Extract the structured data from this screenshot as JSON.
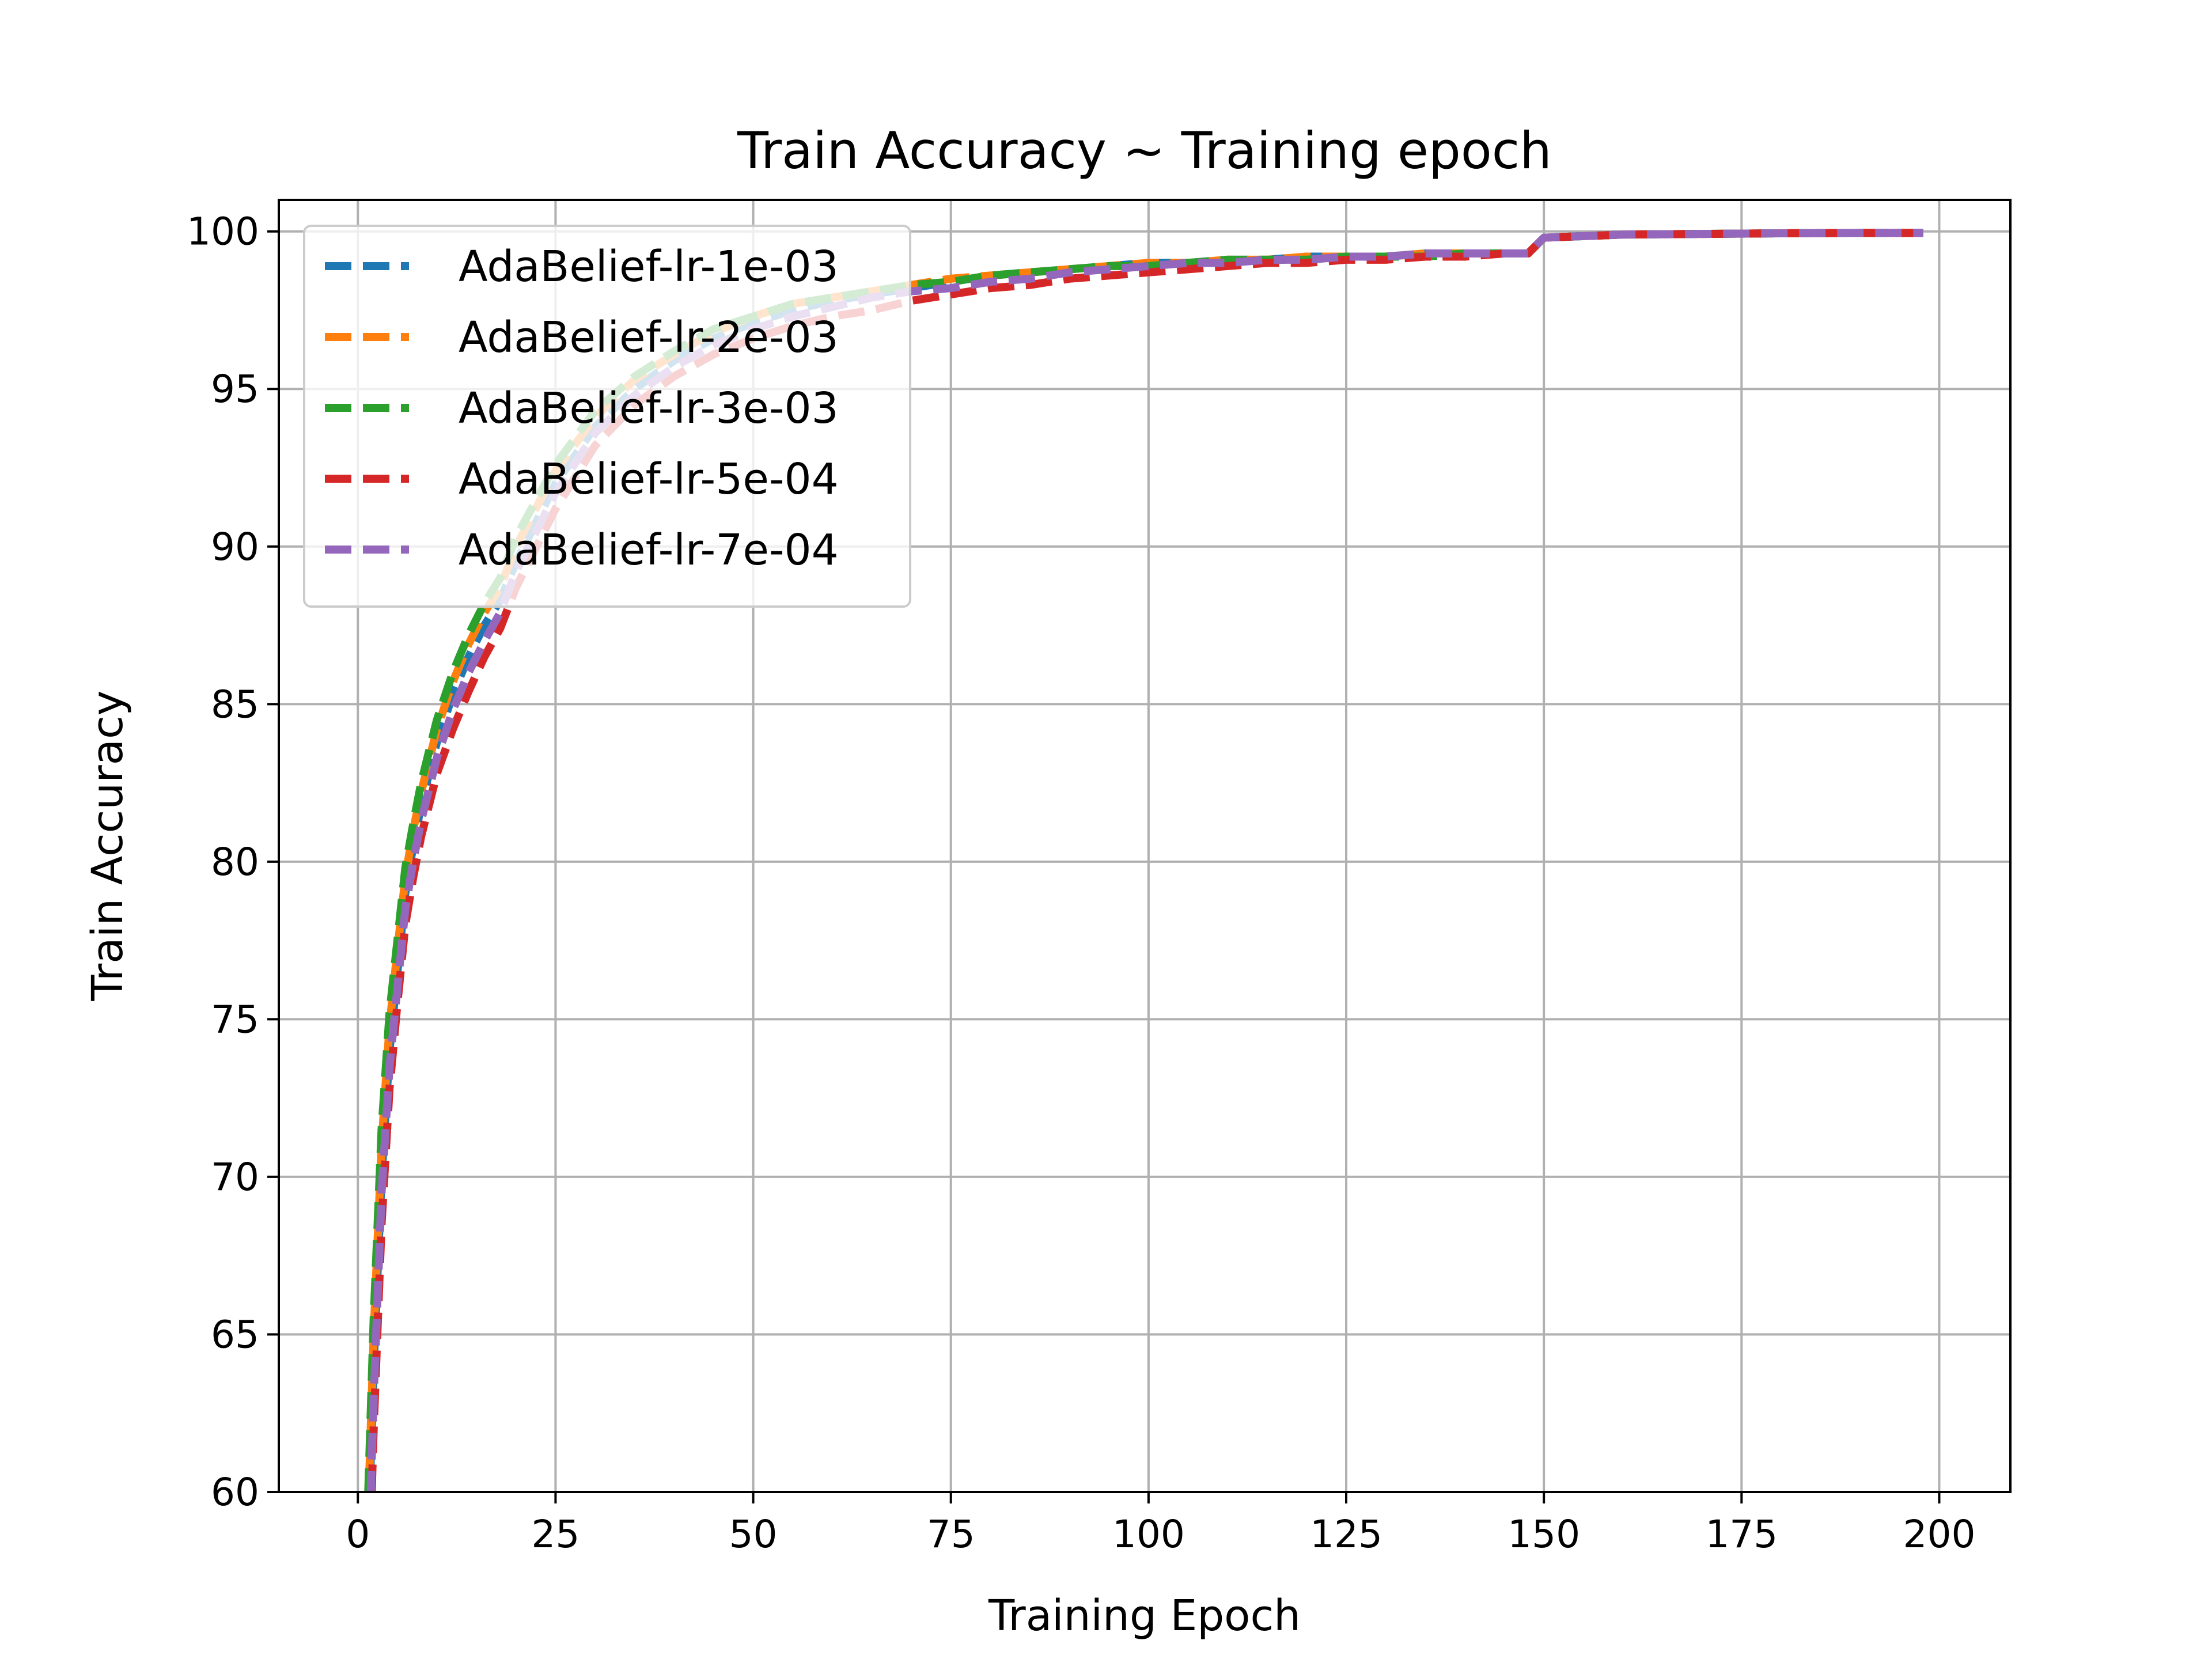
{
  "chart_data": {
    "type": "line",
    "title": "Train Accuracy ~ Training epoch",
    "xlabel": "Training Epoch",
    "ylabel": "Train Accuracy",
    "xlim": [
      -10,
      209
    ],
    "ylim": [
      60,
      101
    ],
    "xticks": [
      0,
      25,
      50,
      75,
      100,
      125,
      150,
      175,
      200
    ],
    "yticks": [
      60,
      65,
      70,
      75,
      80,
      85,
      90,
      95,
      100
    ],
    "grid": true,
    "legend_position": "top-left",
    "line_style": "dashed",
    "series": [
      {
        "name": "AdaBelief-lr-1e-03",
        "color": "#1f77b4",
        "x": [
          1,
          2,
          3,
          4,
          5,
          6,
          7,
          8,
          10,
          12,
          14,
          16,
          18,
          20,
          25,
          30,
          35,
          40,
          45,
          50,
          55,
          60,
          65,
          70,
          75,
          80,
          85,
          90,
          95,
          100,
          105,
          110,
          115,
          120,
          125,
          130,
          135,
          140,
          145,
          148,
          150,
          155,
          160,
          170,
          180,
          190,
          198
        ],
        "y": [
          56,
          64,
          70,
          74,
          76.5,
          79,
          80.5,
          81.8,
          83.8,
          85.3,
          86.5,
          87.5,
          88.3,
          89.5,
          92.0,
          93.8,
          95.0,
          95.9,
          96.6,
          97.1,
          97.5,
          97.8,
          98.0,
          98.2,
          98.4,
          98.6,
          98.7,
          98.8,
          98.9,
          99.0,
          99.0,
          99.1,
          99.1,
          99.2,
          99.2,
          99.2,
          99.3,
          99.3,
          99.3,
          99.3,
          99.8,
          99.85,
          99.9,
          99.92,
          99.94,
          99.95,
          99.95
        ]
      },
      {
        "name": "AdaBelief-lr-2e-03",
        "color": "#ff7f0e",
        "x": [
          1,
          2,
          3,
          4,
          5,
          6,
          7,
          8,
          10,
          12,
          14,
          16,
          18,
          20,
          25,
          30,
          35,
          40,
          45,
          50,
          55,
          60,
          65,
          70,
          75,
          80,
          85,
          90,
          95,
          100,
          105,
          110,
          115,
          120,
          125,
          130,
          135,
          140,
          145,
          148,
          150,
          155,
          160,
          170,
          180,
          190,
          198
        ],
        "y": [
          57,
          65,
          71,
          74.8,
          77.2,
          79.5,
          81,
          82.2,
          84.2,
          85.7,
          86.9,
          87.9,
          88.7,
          90.0,
          92.4,
          94.1,
          95.3,
          96.1,
          96.8,
          97.3,
          97.7,
          97.9,
          98.1,
          98.3,
          98.5,
          98.6,
          98.7,
          98.8,
          98.9,
          99.0,
          99.0,
          99.1,
          99.1,
          99.2,
          99.2,
          99.2,
          99.3,
          99.3,
          99.3,
          99.3,
          99.8,
          99.85,
          99.9,
          99.92,
          99.94,
          99.95,
          99.95
        ]
      },
      {
        "name": "AdaBelief-lr-3e-03",
        "color": "#2ca02c",
        "x": [
          1,
          2,
          3,
          4,
          5,
          6,
          7,
          8,
          10,
          12,
          14,
          16,
          18,
          20,
          25,
          30,
          35,
          40,
          45,
          50,
          55,
          60,
          65,
          70,
          75,
          80,
          85,
          90,
          95,
          100,
          105,
          110,
          115,
          120,
          125,
          130,
          135,
          140,
          145,
          148,
          150,
          155,
          160,
          170,
          180,
          190,
          198
        ],
        "y": [
          57.5,
          65.5,
          71.5,
          75.2,
          77.5,
          79.8,
          81.2,
          82.5,
          84.5,
          86.0,
          87.2,
          88.2,
          89.0,
          90.3,
          92.6,
          94.3,
          95.4,
          96.2,
          96.9,
          97.3,
          97.7,
          97.9,
          98.1,
          98.3,
          98.4,
          98.6,
          98.7,
          98.8,
          98.9,
          98.9,
          99.0,
          99.1,
          99.1,
          99.1,
          99.2,
          99.2,
          99.2,
          99.3,
          99.3,
          99.3,
          99.8,
          99.85,
          99.9,
          99.92,
          99.94,
          99.95,
          99.95
        ]
      },
      {
        "name": "AdaBelief-lr-5e-04",
        "color": "#d62728",
        "x": [
          1,
          2,
          3,
          4,
          5,
          6,
          7,
          8,
          10,
          12,
          14,
          16,
          18,
          20,
          25,
          30,
          35,
          40,
          45,
          50,
          55,
          60,
          65,
          70,
          75,
          80,
          85,
          90,
          95,
          100,
          105,
          110,
          115,
          120,
          125,
          130,
          135,
          140,
          145,
          148,
          150,
          155,
          160,
          170,
          180,
          190,
          198
        ],
        "y": [
          54,
          62,
          68.5,
          72.8,
          75.5,
          78,
          79.5,
          80.8,
          82.8,
          84.2,
          85.4,
          86.5,
          87.4,
          88.7,
          91.2,
          93.2,
          94.5,
          95.4,
          96.1,
          96.6,
          97.0,
          97.3,
          97.5,
          97.8,
          98.0,
          98.2,
          98.3,
          98.5,
          98.6,
          98.7,
          98.8,
          98.9,
          99.0,
          99.0,
          99.1,
          99.1,
          99.2,
          99.2,
          99.3,
          99.3,
          99.8,
          99.85,
          99.9,
          99.92,
          99.94,
          99.95,
          99.95
        ]
      },
      {
        "name": "AdaBelief-lr-7e-04",
        "color": "#9467bd",
        "x": [
          1,
          2,
          3,
          4,
          5,
          6,
          7,
          8,
          10,
          12,
          14,
          16,
          18,
          20,
          25,
          30,
          35,
          40,
          45,
          50,
          55,
          60,
          65,
          70,
          75,
          80,
          85,
          90,
          95,
          100,
          105,
          110,
          115,
          120,
          125,
          130,
          135,
          140,
          145,
          148,
          150,
          155,
          160,
          170,
          180,
          190,
          198
        ],
        "y": [
          55,
          63,
          69.5,
          73.5,
          76.0,
          78.5,
          80.0,
          81.3,
          83.3,
          84.8,
          86.0,
          87.0,
          87.9,
          89.2,
          91.7,
          93.6,
          94.8,
          95.7,
          96.4,
          96.9,
          97.3,
          97.6,
          97.9,
          98.1,
          98.2,
          98.4,
          98.5,
          98.7,
          98.8,
          98.9,
          99.0,
          99.0,
          99.1,
          99.1,
          99.2,
          99.2,
          99.3,
          99.3,
          99.3,
          99.3,
          99.8,
          99.85,
          99.9,
          99.92,
          99.94,
          99.95,
          99.95
        ]
      }
    ]
  }
}
